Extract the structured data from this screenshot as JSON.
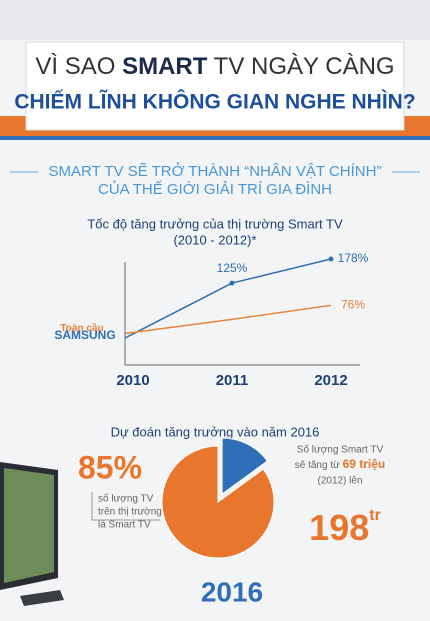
{
  "header": {
    "line1_before": "VÌ SAO",
    "logo": "SMART",
    "line1_after": "TV NGÀY CÀNG",
    "line2": "CHIẾM LĨNH KHÔNG GIAN NGHE NHÌN?"
  },
  "subtitle": [
    "SMART TV SẼ TRỞ THÀNH “NHÂN VẬT CHÍNH”",
    "CỦA THẾ GIỚI GIẢI TRÍ GIA ĐÌNH"
  ],
  "chart_data": [
    {
      "type": "line",
      "title": [
        "Tốc độ tăng trưởng của thị trường Smart TV",
        "(2010 - 2012)*"
      ],
      "categories": [
        "2010",
        "2011",
        "2012"
      ],
      "series": [
        {
          "name": "SAMSUNG",
          "color": "#2f6db5",
          "values": [
            4,
            125,
            178
          ],
          "value_labels": [
            null,
            "125%",
            "178%"
          ]
        },
        {
          "name": "Toàn cầu",
          "color": "#e8823a",
          "values": [
            14,
            45,
            76
          ],
          "value_labels": [
            null,
            null,
            "76%"
          ]
        }
      ]
    },
    {
      "type": "pie",
      "title": "Dự đoán tăng trưởng vào năm 2016",
      "values": [
        85,
        15
      ],
      "value_labels": [
        "85%",
        null
      ],
      "colors": [
        "#e8762d",
        "#2e6fb7"
      ],
      "caption": [
        "số lượng TV",
        "trên thị trường",
        "là Smart TV"
      ],
      "year": "2016"
    }
  ],
  "forecast": {
    "line1": "Số lượng Smart TV",
    "line2_before": "sẽ tăng từ",
    "highlight": "69 triệu",
    "line3": "(2012) lên",
    "value": "198",
    "unit": "tr"
  }
}
